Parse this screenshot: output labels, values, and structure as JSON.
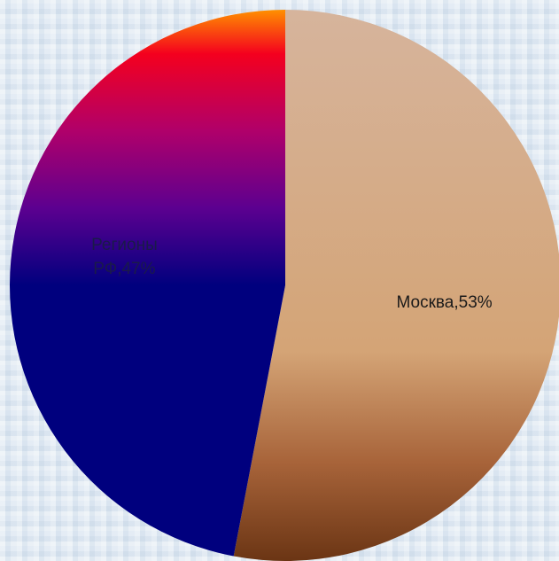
{
  "chart_data": {
    "type": "pie",
    "title": "",
    "start_angle_deg": 0,
    "direction": "clockwise",
    "legend": "none",
    "slices": [
      {
        "label": "Москва,53%",
        "value": 53,
        "label_color": "#1a1a1a",
        "gradient": [
          "#d6b49c",
          "#d4a476",
          "#a8643a",
          "#6b3514"
        ]
      },
      {
        "label_lines": [
          "Регионы",
          "РФ,47%"
        ],
        "value": 47,
        "label_color": "#1a1a4a",
        "gradient": [
          "#ff9000",
          "#f4001e",
          "#b0006a",
          "#5c0090",
          "#00007e",
          "#00007e"
        ]
      }
    ]
  }
}
